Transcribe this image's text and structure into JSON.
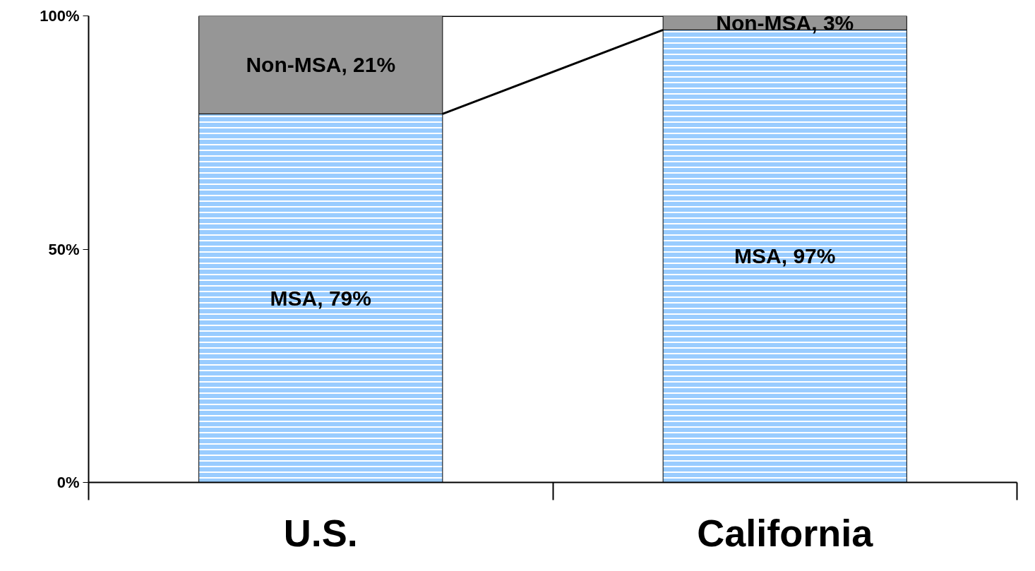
{
  "chart_data": {
    "type": "bar",
    "stacked": true,
    "categories": [
      "U.S.",
      "California"
    ],
    "series": [
      {
        "color": "#99ccff",
        "values": [
          79,
          97
        ],
        "value_labels": [
          "MSA, 79%",
          "MSA, 97%"
        ]
      },
      {
        "color": "#969696",
        "values": [
          21,
          3
        ],
        "value_labels": [
          "Non-MSA, 21%",
          "Non-MSA, 3%"
        ]
      }
    ],
    "ylim": [
      0,
      100
    ],
    "yticks": [
      {
        "value": 0,
        "label": "0%"
      },
      {
        "value": 50,
        "label": "50%"
      },
      {
        "value": 100,
        "label": "100%"
      }
    ],
    "grid": false
  }
}
